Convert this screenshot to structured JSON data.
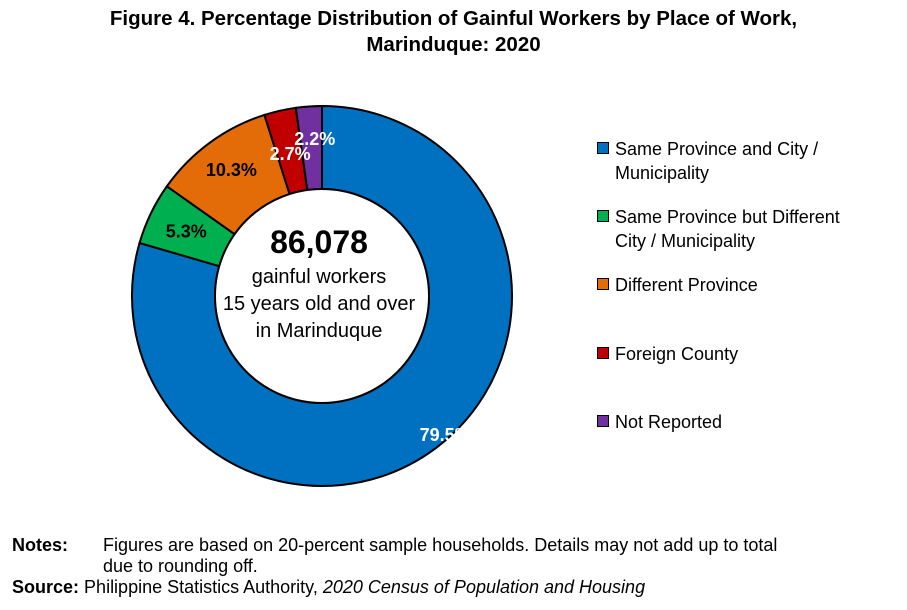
{
  "title": {
    "line1": "Figure 4. Percentage Distribution of Gainful Workers by Place of Work,",
    "line2": "Marinduque: 2020"
  },
  "chart_data": {
    "type": "pie",
    "variant": "donut",
    "title": "Figure 4. Percentage Distribution of Gainful Workers by Place of Work, Marinduque: 2020",
    "categories": [
      "Same Province and City / Municipality",
      "Same Province but Different City / Municipality",
      "Different Province",
      "Foreign County",
      "Not Reported"
    ],
    "values": [
      79.5,
      5.3,
      10.3,
      2.7,
      2.2
    ],
    "data_labels": [
      "79.5%",
      "5.3%",
      "10.3%",
      "2.7%",
      "2.2%"
    ],
    "colors": [
      "#0070C0",
      "#00B050",
      "#E36C09",
      "#C00000",
      "#7030A0"
    ],
    "label_colors": [
      "#ffffff",
      "#000000",
      "#000000",
      "#ffffff",
      "#ffffff"
    ],
    "legend_position": "right",
    "center": {
      "total": "86,078",
      "line1": "gainful workers",
      "line2": "15 years old and over",
      "line3": "in Marinduque"
    }
  },
  "legend": [
    {
      "label": "Same Province and City /\nMunicipality",
      "color": "#0070C0"
    },
    {
      "label": "Same Province but Different\nCity / Municipality",
      "color": "#00B050"
    },
    {
      "label": "Different Province",
      "color": "#E36C09"
    },
    {
      "label": "Foreign County",
      "color": "#C00000"
    },
    {
      "label": "Not Reported",
      "color": "#7030A0"
    }
  ],
  "notes": {
    "label": "Notes:",
    "text": "Figures are based on 20-percent sample households. Details may not add up to total",
    "text_cont": "due to rounding off."
  },
  "source": {
    "label": "Source:",
    "text": "Philippine Statistics Authority,",
    "publication": "2020 Census of Population and Housing"
  }
}
